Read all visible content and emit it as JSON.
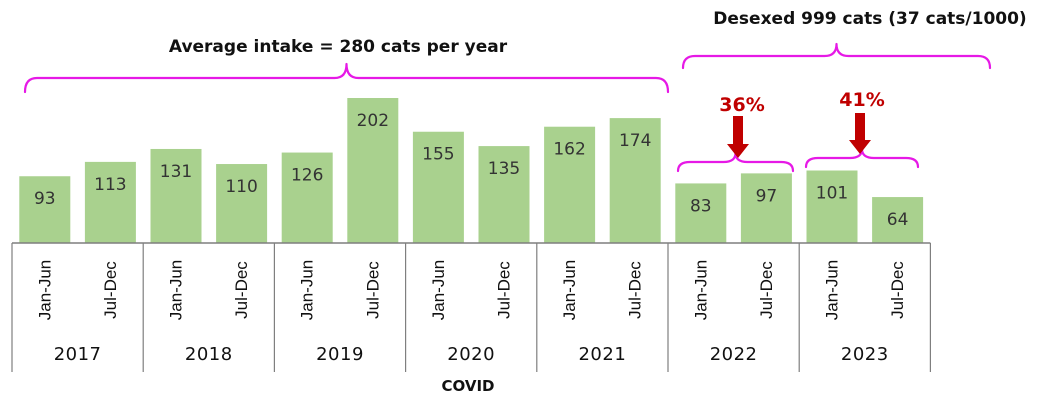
{
  "chart_data": {
    "type": "bar",
    "categories": [
      "2017 Jan-Jun",
      "2017 Jul-Dec",
      "2018 Jan-Jun",
      "2018 Jul-Dec",
      "2019 Jan-Jun",
      "2019 Jul-Dec",
      "2020 Jan-Jun",
      "2020 Jul-Dec",
      "2021 Jan-Jun",
      "2021 Jul-Dec",
      "2022 Jan-Jun",
      "2022 Jul-Dec",
      "2023 Jan-Jun",
      "2023 Jul-Dec"
    ],
    "periods": [
      "Jan-Jun",
      "Jul-Dec",
      "Jan-Jun",
      "Jul-Dec",
      "Jan-Jun",
      "Jul-Dec",
      "Jan-Jun",
      "Jul-Dec",
      "Jan-Jun",
      "Jul-Dec",
      "Jan-Jun",
      "Jul-Dec",
      "Jan-Jun",
      "Jul-Dec"
    ],
    "years": [
      "2017",
      "2018",
      "2019",
      "2020",
      "2021",
      "2022",
      "2023"
    ],
    "values": [
      93,
      113,
      131,
      110,
      126,
      202,
      155,
      135,
      162,
      174,
      83,
      97,
      101,
      64
    ],
    "ylim": [
      0,
      210
    ],
    "grid": false,
    "annotations": {
      "average": "Average intake = 280 cats per year",
      "desexed": "Desexed 999 cats (37 cats/1000)",
      "pct_2022": "36%",
      "pct_2023": "41%",
      "covid": "COVID"
    }
  },
  "colors": {
    "bar": "#a9d18e",
    "brace": "#e619e6",
    "arrow": "#c00000",
    "axis": "#7f7f7f"
  }
}
